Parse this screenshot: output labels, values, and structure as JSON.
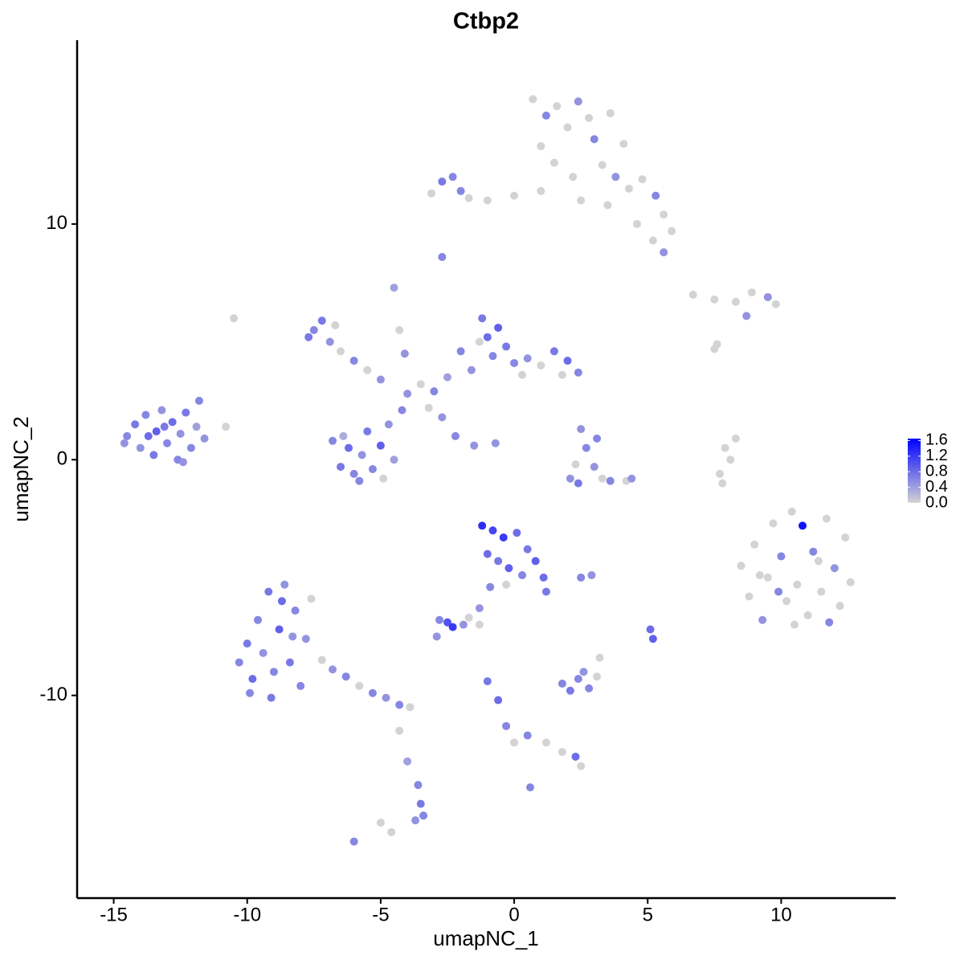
{
  "chart_data": {
    "type": "scatter",
    "title": "Ctbp2",
    "x_label": "umapNC_1",
    "y_label": "umapNC_2",
    "xlim": [
      -16.37,
      14.29
    ],
    "ylim": [
      -18.6,
      17.8
    ],
    "xticks": [
      -15,
      -10,
      -5,
      0,
      5,
      10
    ],
    "yticks": [
      -10,
      0,
      10
    ],
    "color_low": "#d3d3d3",
    "color_high": "#0000ff",
    "color_lim": [
      0,
      1.65
    ],
    "color_ticks": [
      {
        "value": 0,
        "label": "0.0"
      },
      {
        "value": 0.4,
        "label": "0.4"
      },
      {
        "value": 0.8,
        "label": "0.8"
      },
      {
        "value": 1.2,
        "label": "1.2"
      },
      {
        "value": 1.6,
        "label": "1.6"
      }
    ],
    "x": [
      -14.5,
      -14.2,
      -14.0,
      -13.8,
      -13.5,
      -13.4,
      -13.2,
      -13.0,
      -12.8,
      -12.6,
      -12.5,
      -12.3,
      -12.1,
      -11.9,
      -11.8,
      -11.6,
      -13.7,
      -13.1,
      -12.4,
      -14.6,
      -6.8,
      -6.5,
      -6.2,
      -6.0,
      -5.7,
      -5.5,
      -5.3,
      -5.0,
      -4.7,
      -4.5,
      -6.4,
      -5.8,
      -4.9,
      -4.2,
      -7.5,
      -7.2,
      -6.9,
      -6.5,
      -6.0,
      -5.5,
      -5.0,
      -7.7,
      -6.7,
      -4.0,
      -3.5,
      -3.0,
      -2.5,
      -3.2,
      -2.7,
      -2.2,
      -1.5,
      -4.3,
      -4.5,
      -4.1,
      -1.2,
      -1.0,
      -0.6,
      -0.8,
      -0.3,
      0.0,
      0.5,
      1.0,
      1.5,
      2.0,
      2.4,
      1.8,
      -1.6,
      -2.0,
      -1.3,
      0.3,
      -10.3,
      -10.0,
      -9.8,
      -9.6,
      -9.4,
      -9.2,
      -9.0,
      -8.8,
      -8.6,
      -8.4,
      -8.2,
      -8.0,
      -7.8,
      -7.6,
      -9.9,
      -9.1,
      -8.7,
      -8.3,
      -7.2,
      -6.8,
      -6.3,
      -5.8,
      -5.3,
      -4.8,
      -4.3,
      -3.9,
      -4.3,
      -4.0,
      -3.6,
      -3.5,
      -3.4,
      -3.7,
      -6.0,
      -4.6,
      0.7,
      1.2,
      1.6,
      2.0,
      2.4,
      2.8,
      3.0,
      1.0,
      1.5,
      2.2,
      3.3,
      3.8,
      4.3,
      4.8,
      5.3,
      5.6,
      4.6,
      5.2,
      5.9,
      5.6,
      3.5,
      2.5,
      1.0,
      0.0,
      -1.0,
      -2.0,
      -2.7,
      -3.1,
      -2.3,
      -1.7,
      4.1,
      3.6,
      6.7,
      7.5,
      8.3,
      8.9,
      9.5,
      9.8,
      8.7,
      7.6,
      8.5,
      8.8,
      9.0,
      9.3,
      9.5,
      9.7,
      10.0,
      10.2,
      10.4,
      10.6,
      10.8,
      11.0,
      11.2,
      11.5,
      11.7,
      12.0,
      12.2,
      12.4,
      12.6,
      9.2,
      10.5,
      11.8,
      9.9,
      11.4,
      7.9,
      8.1,
      8.3,
      7.7,
      7.8,
      -1.2,
      -0.8,
      -0.4,
      0.1,
      0.5,
      0.8,
      -1.0,
      -0.6,
      -0.2,
      0.3,
      1.1,
      1.2,
      -0.3,
      -0.9,
      -1.3,
      -2.5,
      -2.3,
      -2.8,
      -2.9,
      -1.7,
      2.5,
      2.7,
      3.0,
      3.3,
      3.6,
      2.4,
      2.1,
      4.2,
      4.4,
      2.3,
      3.1,
      1.8,
      2.1,
      2.4,
      2.8,
      3.1,
      2.6,
      3.2,
      2.5,
      2.9,
      5.1,
      5.2,
      -1.0,
      -0.6,
      -0.3,
      0.0,
      0.5,
      1.2,
      1.8,
      2.3,
      2.5,
      0.6,
      -2.7,
      -10.5,
      -10.8,
      7.5,
      -5.0,
      -0.7,
      -1.9,
      -1.3
    ],
    "y": [
      1.0,
      1.5,
      0.5,
      1.9,
      0.2,
      1.2,
      2.1,
      0.7,
      1.6,
      0.0,
      1.1,
      2.0,
      0.5,
      1.4,
      2.5,
      0.9,
      1.0,
      1.4,
      -0.1,
      0.7,
      0.8,
      -0.3,
      0.5,
      -0.6,
      0.2,
      1.2,
      -0.4,
      0.6,
      1.5,
      0.0,
      1.0,
      -0.9,
      -0.8,
      2.1,
      5.5,
      5.9,
      5.0,
      4.6,
      4.2,
      3.8,
      3.4,
      5.2,
      5.7,
      2.8,
      3.2,
      2.9,
      3.5,
      2.2,
      1.8,
      1.0,
      0.6,
      5.5,
      7.3,
      4.5,
      6.0,
      5.2,
      5.6,
      4.4,
      4.8,
      4.1,
      4.3,
      4.0,
      4.6,
      4.2,
      3.7,
      3.6,
      3.8,
      4.6,
      5.0,
      3.6,
      -8.6,
      -7.8,
      -9.3,
      -6.8,
      -8.2,
      -5.6,
      -9.0,
      -7.2,
      -5.3,
      -8.6,
      -6.4,
      -9.6,
      -7.6,
      -5.9,
      -9.9,
      -10.1,
      -6.0,
      -7.5,
      -8.5,
      -8.9,
      -9.2,
      -9.6,
      -9.9,
      -10.1,
      -10.4,
      -10.5,
      -11.5,
      -12.8,
      -13.8,
      -14.6,
      -15.1,
      -15.3,
      -16.2,
      -15.8,
      15.3,
      14.6,
      15.0,
      14.1,
      15.2,
      14.5,
      13.6,
      13.3,
      12.6,
      12.0,
      12.5,
      12.0,
      11.5,
      11.9,
      11.2,
      10.4,
      10.0,
      9.3,
      9.7,
      8.8,
      10.8,
      11.0,
      11.4,
      11.2,
      11.0,
      11.4,
      11.8,
      11.3,
      12.0,
      11.1,
      13.4,
      14.7,
      7.0,
      6.8,
      6.7,
      7.1,
      6.9,
      6.6,
      6.1,
      4.9,
      -4.5,
      -5.8,
      -3.6,
      -6.8,
      -5.0,
      -2.7,
      -4.1,
      -6.0,
      -2.2,
      -5.3,
      -2.8,
      -6.6,
      -3.9,
      -5.6,
      -2.5,
      -4.6,
      -6.2,
      -3.3,
      -5.2,
      -4.9,
      -7.0,
      -6.9,
      -5.6,
      -4.3,
      0.5,
      0.0,
      0.9,
      -0.6,
      -1.0,
      -2.8,
      -3.0,
      -3.3,
      -3.1,
      -3.8,
      -4.3,
      -4.0,
      -4.3,
      -4.6,
      -4.9,
      -5.0,
      -5.6,
      -5.3,
      -5.4,
      -6.3,
      -6.9,
      -7.1,
      -6.8,
      -7.5,
      -6.7,
      1.3,
      0.5,
      -0.3,
      -0.8,
      -0.9,
      -1.0,
      -0.8,
      -0.9,
      -0.8,
      -0.2,
      0.9,
      -9.5,
      -9.8,
      -9.3,
      -9.7,
      -9.2,
      -9.0,
      -8.4,
      -5.0,
      -4.9,
      -7.2,
      -7.6,
      -9.4,
      -10.2,
      -11.3,
      -12.0,
      -11.7,
      -12.0,
      -12.4,
      -12.6,
      -13.0,
      -13.9,
      8.6,
      6.0,
      1.4,
      4.7,
      -15.4,
      0.7,
      -7.0,
      -7.0
    ],
    "values": [
      0.6,
      0.7,
      0.5,
      0.6,
      0.7,
      0.9,
      0.5,
      0.6,
      0.8,
      0.6,
      0.5,
      0.7,
      0.6,
      0.4,
      0.6,
      0.5,
      0.8,
      0.7,
      0.5,
      0.5,
      0.6,
      0.7,
      0.8,
      0.6,
      0.5,
      0.7,
      0.6,
      0.9,
      0.5,
      0.4,
      0.3,
      0.6,
      0.0,
      0.6,
      0.6,
      0.7,
      0.5,
      0.0,
      0.6,
      0.0,
      0.5,
      0.7,
      0.0,
      0.5,
      0.0,
      0.6,
      0.4,
      0.0,
      0.5,
      0.6,
      0.5,
      0.0,
      0.4,
      0.5,
      0.7,
      0.8,
      0.9,
      0.6,
      0.7,
      0.6,
      0.5,
      0.0,
      0.7,
      0.8,
      0.6,
      0.0,
      0.5,
      0.6,
      0.0,
      0.0,
      0.6,
      0.7,
      0.8,
      0.6,
      0.5,
      0.7,
      0.6,
      0.9,
      0.5,
      0.7,
      0.6,
      0.6,
      0.5,
      0.0,
      0.6,
      0.7,
      0.8,
      0.5,
      0.0,
      0.5,
      0.6,
      0.0,
      0.6,
      0.5,
      0.6,
      0.0,
      0.0,
      0.4,
      0.6,
      0.7,
      0.6,
      0.5,
      0.6,
      0.0,
      0.0,
      0.6,
      0.0,
      0.0,
      0.5,
      0.0,
      0.6,
      0.0,
      0.0,
      0.0,
      0.0,
      0.5,
      0.0,
      0.0,
      0.6,
      0.0,
      0.0,
      0.0,
      0.0,
      0.5,
      0.0,
      0.0,
      0.0,
      0.0,
      0.0,
      0.6,
      0.7,
      0.0,
      0.6,
      0.0,
      0.0,
      0.0,
      0.0,
      0.0,
      0.0,
      0.0,
      0.5,
      0.0,
      0.5,
      0.0,
      0.0,
      0.0,
      0.0,
      0.5,
      0.0,
      0.0,
      0.6,
      0.0,
      0.0,
      0.0,
      1.5,
      0.0,
      0.6,
      0.0,
      0.0,
      0.5,
      0.0,
      0.0,
      0.0,
      0.0,
      0.0,
      0.6,
      0.6,
      0.0,
      0.0,
      0.0,
      0.0,
      0.0,
      0.0,
      1.3,
      1.1,
      1.2,
      0.8,
      0.7,
      0.9,
      0.8,
      0.7,
      0.9,
      0.6,
      0.8,
      0.7,
      0.0,
      0.6,
      0.5,
      1.0,
      1.2,
      0.6,
      0.5,
      0.0,
      0.5,
      0.6,
      0.5,
      0.0,
      0.6,
      0.7,
      0.5,
      0.0,
      0.5,
      0.0,
      0.6,
      0.6,
      0.7,
      0.6,
      0.6,
      0.0,
      0.5,
      0.0,
      0.6,
      0.5,
      0.8,
      0.9,
      0.7,
      0.8,
      0.6,
      0.0,
      0.6,
      0.0,
      0.0,
      0.8,
      0.0,
      0.6,
      0.6,
      0.0,
      0.0,
      0.0,
      0.0,
      0.5,
      0.5,
      0.0
    ]
  }
}
